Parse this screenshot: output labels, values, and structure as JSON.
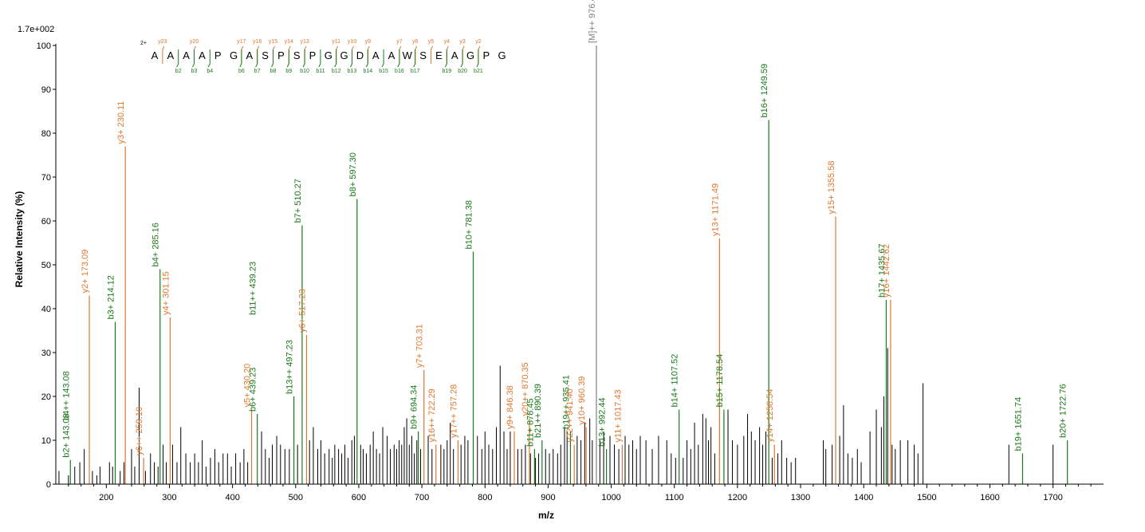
{
  "chart_data": {
    "type": "bar",
    "ymax_label": "1.7e+002",
    "xlabel": "m/z",
    "ylabel": "Relative   Intensity (%)",
    "xlim": [
      120,
      1780
    ],
    "ylim": [
      0,
      100
    ],
    "x_ticks": [
      200,
      300,
      400,
      500,
      600,
      700,
      800,
      900,
      1000,
      1100,
      1200,
      1300,
      1400,
      1500,
      1600,
      1700
    ],
    "y_ticks": [
      0,
      10,
      20,
      30,
      40,
      50,
      60,
      70,
      80,
      90,
      100
    ],
    "colors": {
      "b": "#1a7a1a",
      "y": "#e07830",
      "precursor": "#808080",
      "other": "#000000"
    },
    "annotated_peaks": [
      {
        "mz": 143.08,
        "rel": 5.5,
        "label": "b2+ 143.08",
        "type": "b"
      },
      {
        "mz": 143.08,
        "rel": 14.0,
        "label": "b4++ 143.08",
        "type": "b",
        "no_line": true
      },
      {
        "mz": 173.09,
        "rel": 43.0,
        "label": "y2+ 173.09",
        "type": "y"
      },
      {
        "mz": 214.12,
        "rel": 37.0,
        "label": "b3+ 214.12",
        "type": "b"
      },
      {
        "mz": 230.11,
        "rel": 77.0,
        "label": "y3+ 230.11",
        "type": "y"
      },
      {
        "mz": 259.1,
        "rel": 6.0,
        "label": "y6++ 259.10",
        "type": "y"
      },
      {
        "mz": 285.16,
        "rel": 49.0,
        "label": "b4+ 285.16",
        "type": "b"
      },
      {
        "mz": 301.15,
        "rel": 38.0,
        "label": "y4+ 301.15",
        "type": "y"
      },
      {
        "mz": 430.2,
        "rel": 17.0,
        "label": "y5+ 430.20",
        "type": "y"
      },
      {
        "mz": 439.23,
        "rel": 16.0,
        "label": "b6+ 439.23",
        "type": "b"
      },
      {
        "mz": 439.23,
        "rel": 38.0,
        "label": "b11++ 439.23",
        "type": "b",
        "no_line": true
      },
      {
        "mz": 497.23,
        "rel": 20.0,
        "label": "b13++ 497.23",
        "type": "b"
      },
      {
        "mz": 510.27,
        "rel": 59.0,
        "label": "b7+ 510.27",
        "type": "b"
      },
      {
        "mz": 517.23,
        "rel": 34.0,
        "label": "y6+ 517.23",
        "type": "y"
      },
      {
        "mz": 597.3,
        "rel": 65.0,
        "label": "b8+ 597.30",
        "type": "b"
      },
      {
        "mz": 694.34,
        "rel": 12.0,
        "label": "b9+ 694.34",
        "type": "b"
      },
      {
        "mz": 703.31,
        "rel": 26.0,
        "label": "y7+ 703.31",
        "type": "y"
      },
      {
        "mz": 722.29,
        "rel": 9.0,
        "label": "y16++ 722.29",
        "type": "y"
      },
      {
        "mz": 757.28,
        "rel": 10.0,
        "label": "y17++ 757.28",
        "type": "y"
      },
      {
        "mz": 781.38,
        "rel": 53.0,
        "label": "b10+ 781.38",
        "type": "b"
      },
      {
        "mz": 846.38,
        "rel": 12.0,
        "label": "y9+ 846.38",
        "type": "y"
      },
      {
        "mz": 870.35,
        "rel": 15.0,
        "label": "y20++ 870.35",
        "type": "y"
      },
      {
        "mz": 878.45,
        "rel": 8.0,
        "label": "b11+ 878.45",
        "type": "b"
      },
      {
        "mz": 890.39,
        "rel": 10.0,
        "label": "b21++ 890.39",
        "type": "b"
      },
      {
        "mz": 935.41,
        "rel": 12.0,
        "label": "b19++ 935.41",
        "type": "b"
      },
      {
        "mz": 941.4,
        "rel": 9.0,
        "label": "y22++ 941.40",
        "type": "y"
      },
      {
        "mz": 960.39,
        "rel": 13.0,
        "label": "y10+ 960.39",
        "type": "y"
      },
      {
        "mz": 976.49,
        "rel": 100.0,
        "label": "[M]++ 976.49",
        "type": "precursor"
      },
      {
        "mz": 992.44,
        "rel": 8.0,
        "label": "b13+ 992.44",
        "type": "b"
      },
      {
        "mz": 1017.43,
        "rel": 9.0,
        "label": "y11+ 1017.43",
        "type": "y"
      },
      {
        "mz": 1107.52,
        "rel": 17.0,
        "label": "b14+ 1107.52",
        "type": "b"
      },
      {
        "mz": 1171.49,
        "rel": 56.0,
        "label": "y13+ 1171.49",
        "type": "y"
      },
      {
        "mz": 1178.54,
        "rel": 17.0,
        "label": "b15+ 1178.54",
        "type": "b"
      },
      {
        "mz": 1249.59,
        "rel": 83.0,
        "label": "b16+ 1249.59",
        "type": "b"
      },
      {
        "mz": 1258.54,
        "rel": 9.0,
        "label": "y14+ 1258.54",
        "type": "y"
      },
      {
        "mz": 1355.58,
        "rel": 61.0,
        "label": "y15+ 1355.58",
        "type": "y"
      },
      {
        "mz": 1435.67,
        "rel": 42.0,
        "label": "b17+ 1435.67",
        "type": "b"
      },
      {
        "mz": 1442.62,
        "rel": 42.0,
        "label": "y16+ 1442.62",
        "type": "y"
      },
      {
        "mz": 1651.74,
        "rel": 7.0,
        "label": "b19+ 1651.74",
        "type": "b"
      },
      {
        "mz": 1722.76,
        "rel": 10.0,
        "label": "b20+ 1722.76",
        "type": "b"
      }
    ],
    "unlabeled_peaks": [
      [
        125,
        3
      ],
      [
        140,
        2
      ],
      [
        150,
        4
      ],
      [
        158,
        5
      ],
      [
        165,
        8
      ],
      [
        178,
        3
      ],
      [
        185,
        2
      ],
      [
        190,
        4
      ],
      [
        205,
        5
      ],
      [
        210,
        4
      ],
      [
        222,
        3
      ],
      [
        228,
        5
      ],
      [
        240,
        8
      ],
      [
        245,
        4
      ],
      [
        252,
        22
      ],
      [
        262,
        3
      ],
      [
        270,
        7
      ],
      [
        276,
        5
      ],
      [
        282,
        4
      ],
      [
        290,
        9
      ],
      [
        295,
        5
      ],
      [
        305,
        9
      ],
      [
        312,
        5
      ],
      [
        318,
        13
      ],
      [
        326,
        7
      ],
      [
        333,
        5
      ],
      [
        340,
        7
      ],
      [
        346,
        5
      ],
      [
        352,
        10
      ],
      [
        358,
        4
      ],
      [
        365,
        6
      ],
      [
        372,
        8
      ],
      [
        378,
        5
      ],
      [
        385,
        7
      ],
      [
        392,
        7
      ],
      [
        398,
        4
      ],
      [
        405,
        7
      ],
      [
        412,
        5
      ],
      [
        418,
        8
      ],
      [
        424,
        5
      ],
      [
        446,
        12
      ],
      [
        452,
        8
      ],
      [
        458,
        6
      ],
      [
        463,
        9
      ],
      [
        470,
        11
      ],
      [
        476,
        9
      ],
      [
        483,
        8
      ],
      [
        490,
        8
      ],
      [
        503,
        9
      ],
      [
        522,
        10
      ],
      [
        528,
        13
      ],
      [
        535,
        8
      ],
      [
        540,
        10
      ],
      [
        546,
        7
      ],
      [
        553,
        8
      ],
      [
        558,
        6
      ],
      [
        562,
        9
      ],
      [
        568,
        8
      ],
      [
        573,
        7
      ],
      [
        578,
        9
      ],
      [
        583,
        6
      ],
      [
        589,
        10
      ],
      [
        593,
        11
      ],
      [
        603,
        9
      ],
      [
        607,
        8
      ],
      [
        612,
        7
      ],
      [
        618,
        9
      ],
      [
        623,
        12
      ],
      [
        628,
        8
      ],
      [
        633,
        7
      ],
      [
        638,
        13
      ],
      [
        645,
        11
      ],
      [
        650,
        8
      ],
      [
        656,
        9
      ],
      [
        660,
        8
      ],
      [
        664,
        10
      ],
      [
        668,
        9
      ],
      [
        672,
        13
      ],
      [
        676,
        15
      ],
      [
        680,
        9
      ],
      [
        684,
        11
      ],
      [
        688,
        7
      ],
      [
        692,
        10
      ],
      [
        698,
        8
      ],
      [
        710,
        11
      ],
      [
        716,
        8
      ],
      [
        730,
        9
      ],
      [
        735,
        8
      ],
      [
        740,
        10
      ],
      [
        745,
        14
      ],
      [
        750,
        8
      ],
      [
        762,
        9
      ],
      [
        768,
        11
      ],
      [
        773,
        10
      ],
      [
        788,
        11
      ],
      [
        795,
        8
      ],
      [
        800,
        12
      ],
      [
        806,
        9
      ],
      [
        812,
        8
      ],
      [
        818,
        13
      ],
      [
        824,
        27
      ],
      [
        830,
        12
      ],
      [
        835,
        8
      ],
      [
        840,
        12
      ],
      [
        852,
        8
      ],
      [
        858,
        8
      ],
      [
        864,
        9
      ],
      [
        872,
        7
      ],
      [
        880,
        6
      ],
      [
        885,
        7
      ],
      [
        896,
        8
      ],
      [
        902,
        7
      ],
      [
        908,
        8
      ],
      [
        915,
        7
      ],
      [
        920,
        9
      ],
      [
        926,
        13
      ],
      [
        930,
        12
      ],
      [
        946,
        11
      ],
      [
        952,
        10
      ],
      [
        958,
        14
      ],
      [
        966,
        15
      ],
      [
        970,
        10
      ],
      [
        982,
        10
      ],
      [
        988,
        12
      ],
      [
        998,
        11
      ],
      [
        1005,
        9
      ],
      [
        1012,
        8
      ],
      [
        1022,
        11
      ],
      [
        1028,
        9
      ],
      [
        1034,
        10
      ],
      [
        1040,
        8
      ],
      [
        1046,
        11
      ],
      [
        1055,
        10
      ],
      [
        1065,
        8
      ],
      [
        1075,
        11
      ],
      [
        1088,
        10
      ],
      [
        1095,
        7
      ],
      [
        1102,
        6
      ],
      [
        1114,
        6
      ],
      [
        1120,
        10
      ],
      [
        1126,
        8
      ],
      [
        1132,
        14
      ],
      [
        1138,
        9
      ],
      [
        1145,
        16
      ],
      [
        1150,
        15
      ],
      [
        1154,
        10
      ],
      [
        1158,
        13
      ],
      [
        1164,
        7
      ],
      [
        1185,
        17
      ],
      [
        1192,
        10
      ],
      [
        1200,
        9
      ],
      [
        1210,
        11
      ],
      [
        1216,
        16
      ],
      [
        1222,
        12
      ],
      [
        1228,
        10
      ],
      [
        1235,
        13
      ],
      [
        1240,
        9
      ],
      [
        1245,
        12
      ],
      [
        1255,
        6
      ],
      [
        1264,
        7
      ],
      [
        1270,
        10
      ],
      [
        1278,
        6
      ],
      [
        1285,
        5
      ],
      [
        1292,
        6
      ],
      [
        1336,
        10
      ],
      [
        1340,
        8
      ],
      [
        1350,
        9
      ],
      [
        1362,
        11
      ],
      [
        1368,
        18
      ],
      [
        1375,
        7
      ],
      [
        1382,
        6
      ],
      [
        1390,
        8
      ],
      [
        1396,
        5
      ],
      [
        1410,
        12
      ],
      [
        1420,
        17
      ],
      [
        1428,
        13
      ],
      [
        1432,
        20
      ],
      [
        1438,
        31
      ],
      [
        1445,
        9
      ],
      [
        1450,
        8
      ],
      [
        1458,
        10
      ],
      [
        1470,
        10
      ],
      [
        1480,
        9
      ],
      [
        1486,
        7
      ],
      [
        1494,
        23
      ],
      [
        1630,
        9
      ],
      [
        1700,
        9
      ]
    ],
    "sequence": {
      "charge": "2+",
      "residues": [
        "A",
        "A",
        "A",
        "A",
        "P",
        "G",
        "A",
        "S",
        "P",
        "S",
        "P",
        "G",
        "G",
        "D",
        "A",
        "A",
        "W",
        "S",
        "E",
        "A",
        "G",
        "P",
        "G"
      ],
      "y_ions": [
        "y23",
        "y20",
        "y17",
        "y16",
        "y15",
        "y14",
        "y13",
        "y11",
        "y10",
        "y9",
        "y7",
        "y6",
        "y5",
        "y4",
        "y3",
        "y2"
      ],
      "b_ions": [
        "b2",
        "b3",
        "b4",
        "b6",
        "b7",
        "b8",
        "b9",
        "b10",
        "b11",
        "b12",
        "b13",
        "b14",
        "b15",
        "b16",
        "b17",
        "b19",
        "b20",
        "b21"
      ]
    }
  }
}
